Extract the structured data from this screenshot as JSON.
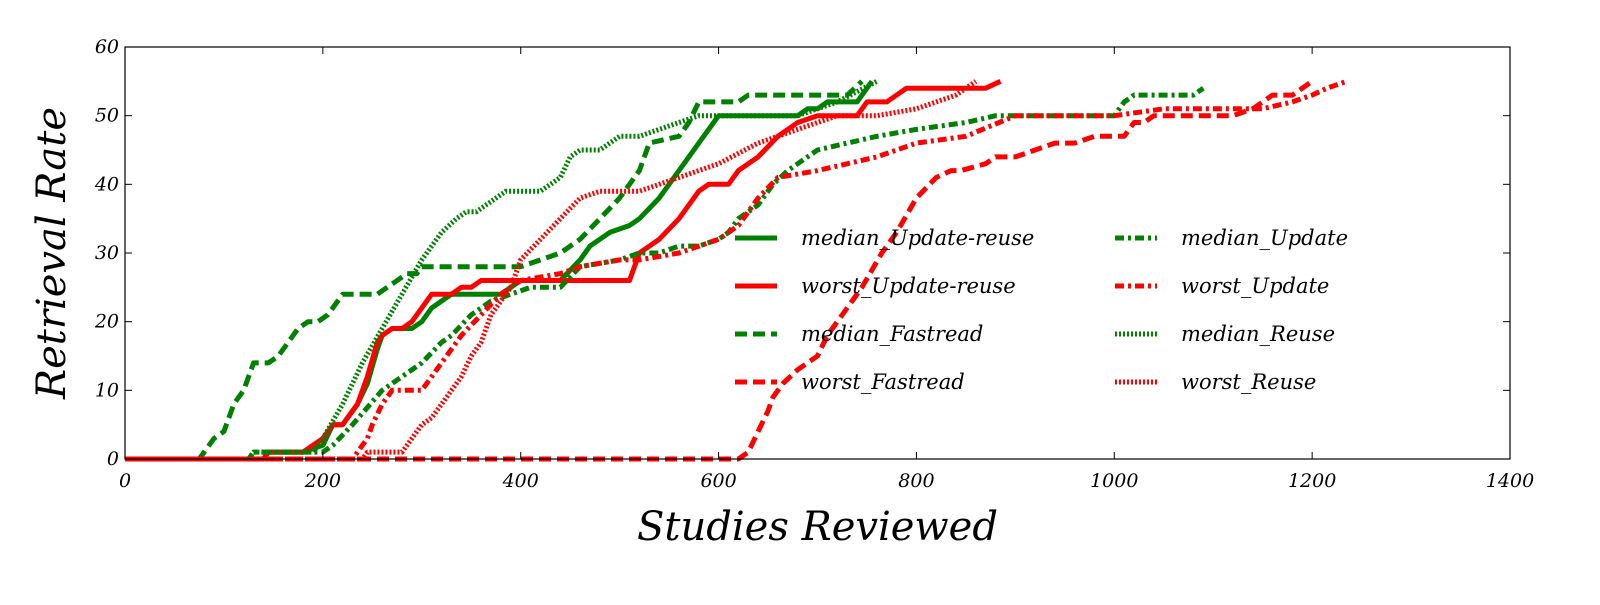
{
  "chart_data": {
    "type": "line",
    "title": "",
    "xlabel": "Studies Reviewed",
    "ylabel": "Retrieval Rate",
    "xlim": [
      0,
      1400
    ],
    "ylim": [
      0,
      60
    ],
    "xticks": [
      0,
      200,
      400,
      600,
      800,
      1000,
      1200,
      1400
    ],
    "yticks": [
      0,
      10,
      20,
      30,
      40,
      50,
      60
    ],
    "grid": false,
    "legend_placement": "center-right",
    "series": [
      {
        "name": "median_Update-reuse",
        "color": "#008000",
        "linestyle": "solid",
        "x": [
          0,
          140,
          145,
          180,
          200,
          210,
          220,
          235,
          245,
          255,
          260,
          270,
          280,
          290,
          300,
          310,
          330,
          340,
          380,
          400,
          420,
          440,
          460,
          470,
          490,
          510,
          520,
          540,
          560,
          570,
          580,
          600,
          620,
          680,
          690,
          700,
          710,
          720,
          740,
          755
        ],
        "y": [
          0,
          0,
          1,
          1,
          2,
          5,
          5,
          8,
          11,
          16,
          18,
          19,
          19,
          19,
          20,
          22,
          24,
          24,
          24,
          26,
          26,
          26,
          29,
          31,
          33,
          34,
          35,
          38,
          42,
          44,
          46,
          50,
          50,
          50,
          51,
          51,
          52,
          52,
          52,
          55
        ]
      },
      {
        "name": "worst_Update-reuse",
        "color": "#ff0000",
        "linestyle": "solid",
        "x": [
          0,
          140,
          145,
          180,
          200,
          210,
          220,
          235,
          245,
          255,
          260,
          270,
          280,
          290,
          300,
          310,
          330,
          340,
          350,
          360,
          420,
          510,
          520,
          540,
          560,
          570,
          580,
          590,
          610,
          620,
          630,
          640,
          660,
          680,
          700,
          740,
          750,
          770,
          790,
          870,
          885
        ],
        "y": [
          0,
          0,
          1,
          1,
          3,
          5,
          5,
          8,
          12,
          17,
          18,
          19,
          19,
          20,
          22,
          24,
          24,
          25,
          25,
          26,
          26,
          26,
          30,
          32,
          35,
          37,
          39,
          40,
          40,
          42,
          43,
          44,
          47,
          49,
          50,
          50,
          52,
          52,
          54,
          54,
          55
        ]
      },
      {
        "name": "median_Fastread",
        "color": "#008000",
        "linestyle": "dashed",
        "x": [
          0,
          75,
          90,
          100,
          110,
          120,
          130,
          145,
          155,
          165,
          175,
          185,
          195,
          205,
          215,
          220,
          255,
          265,
          275,
          285,
          295,
          300,
          315,
          400,
          440,
          460,
          480,
          500,
          520,
          530,
          560,
          570,
          580,
          590,
          620,
          630,
          660,
          690,
          730,
          745
        ],
        "y": [
          0,
          0,
          3,
          4,
          8,
          10,
          14,
          14,
          15,
          17,
          19,
          20,
          20,
          21,
          23,
          24,
          24,
          25,
          26,
          27,
          27,
          28,
          28,
          28,
          30,
          32,
          35,
          38,
          42,
          46,
          47,
          49,
          52,
          52,
          52,
          53,
          53,
          53,
          53,
          55
        ]
      },
      {
        "name": "worst_Fastread",
        "color": "#ff0000",
        "linestyle": "dashed",
        "x": [
          0,
          620,
          630,
          640,
          650,
          655,
          665,
          680,
          700,
          710,
          730,
          745,
          765,
          780,
          800,
          820,
          835,
          845,
          870,
          880,
          900,
          920,
          940,
          960,
          980,
          1010,
          1020,
          1030,
          1040,
          1060,
          1120,
          1140,
          1150,
          1160,
          1170,
          1180,
          1190,
          1200
        ],
        "y": [
          0,
          0,
          1,
          4,
          7,
          9,
          11,
          13,
          15,
          18,
          22,
          25,
          30,
          33,
          38,
          41,
          42,
          42,
          43,
          44,
          44,
          45,
          46,
          46,
          47,
          47,
          49,
          49,
          50,
          50,
          50,
          51,
          52,
          53,
          53,
          53,
          54,
          55
        ]
      },
      {
        "name": "median_Update",
        "color": "#008000",
        "linestyle": "dashdot",
        "x": [
          0,
          125,
          130,
          200,
          210,
          230,
          260,
          280,
          300,
          320,
          330,
          350,
          370,
          390,
          410,
          440,
          460,
          500,
          520,
          540,
          560,
          580,
          600,
          610,
          620,
          640,
          655,
          670,
          700,
          730,
          760,
          800,
          850,
          880,
          900,
          1000,
          1010,
          1020,
          1080,
          1090
        ],
        "y": [
          0,
          0,
          1,
          1,
          2,
          5,
          10,
          12,
          14,
          17,
          18,
          21,
          23,
          24,
          25,
          25,
          28,
          29,
          30,
          30,
          31,
          31,
          32,
          33,
          35,
          37,
          40,
          42,
          45,
          46,
          47,
          48,
          49,
          50,
          50,
          50,
          52,
          53,
          53,
          54
        ]
      },
      {
        "name": "worst_Update",
        "color": "#ff0000",
        "linestyle": "dashdot",
        "x": [
          0,
          230,
          240,
          245,
          250,
          260,
          270,
          300,
          310,
          320,
          340,
          360,
          380,
          400,
          440,
          460,
          500,
          520,
          560,
          600,
          620,
          640,
          660,
          700,
          760,
          800,
          850,
          900,
          950,
          1000,
          1050,
          1120,
          1150,
          1180,
          1200,
          1215,
          1235
        ],
        "y": [
          0,
          0,
          2,
          3,
          5,
          8,
          10,
          10,
          12,
          14,
          18,
          21,
          24,
          26,
          27,
          28,
          29,
          29,
          30,
          32,
          34,
          38,
          41,
          42,
          44,
          46,
          47,
          50,
          50,
          50,
          51,
          51,
          51,
          52,
          53,
          54,
          55
        ]
      },
      {
        "name": "median_Reuse",
        "color": "#008000",
        "linestyle": "dotted",
        "x": [
          0,
          125,
          130,
          190,
          200,
          220,
          240,
          260,
          280,
          300,
          310,
          320,
          335,
          345,
          355,
          375,
          385,
          395,
          420,
          440,
          450,
          460,
          480,
          490,
          500,
          520,
          540,
          560,
          580,
          600,
          640,
          680,
          720,
          760
        ],
        "y": [
          0,
          0,
          1,
          1,
          3,
          8,
          14,
          19,
          24,
          29,
          31,
          33,
          35,
          36,
          36,
          38,
          39,
          39,
          39,
          41,
          44,
          45,
          45,
          46,
          47,
          47,
          48,
          49,
          50,
          50,
          50,
          50,
          52,
          55
        ]
      },
      {
        "name": "worst_Reuse",
        "color": "#ff0000",
        "linestyle": "dotted",
        "x": [
          0,
          240,
          245,
          280,
          290,
          300,
          310,
          320,
          330,
          340,
          350,
          360,
          370,
          390,
          400,
          420,
          440,
          460,
          480,
          520,
          560,
          600,
          640,
          680,
          720,
          760,
          800,
          840,
          860
        ],
        "y": [
          0,
          0,
          1,
          1,
          3,
          5,
          6,
          8,
          10,
          12,
          15,
          17,
          21,
          25,
          29,
          32,
          35,
          38,
          39,
          39,
          41,
          43,
          46,
          48,
          50,
          50,
          51,
          53,
          55
        ]
      }
    ]
  }
}
